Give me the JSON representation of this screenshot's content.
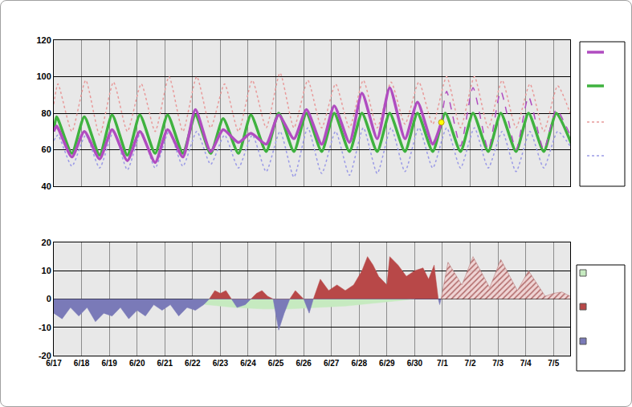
{
  "chart_data": [
    {
      "type": "line",
      "xlim": [
        0,
        18.6
      ],
      "xticks": [
        {
          "value": 0,
          "label": "6/17"
        },
        {
          "value": 1,
          "label": "6/18"
        },
        {
          "value": 2,
          "label": "6/19"
        },
        {
          "value": 3,
          "label": "6/20"
        },
        {
          "value": 4,
          "label": "6/21"
        },
        {
          "value": 5,
          "label": "6/22"
        },
        {
          "value": 6,
          "label": "6/23"
        },
        {
          "value": 7,
          "label": "6/24"
        },
        {
          "value": 8,
          "label": "6/25"
        },
        {
          "value": 9,
          "label": "6/26"
        },
        {
          "value": 10,
          "label": "6/27"
        },
        {
          "value": 11,
          "label": "6/28"
        },
        {
          "value": 12,
          "label": "6/29"
        },
        {
          "value": 13,
          "label": "6/30"
        },
        {
          "value": 14,
          "label": "7/1"
        },
        {
          "value": 15,
          "label": "7/2"
        },
        {
          "value": 16,
          "label": "7/3"
        },
        {
          "value": 17,
          "label": "7/4"
        },
        {
          "value": 18,
          "label": "7/5"
        }
      ],
      "ylim": [
        40,
        120
      ],
      "yticks": [
        40,
        60,
        80,
        100,
        120
      ],
      "grid": true,
      "tick_labels": "y",
      "series": [
        {
          "type": "line",
          "color": "#e89a9a",
          "line_style": "dotted",
          "x": [
            0,
            0.15,
            0.65,
            1.15,
            1.65,
            2.15,
            2.65,
            3.15,
            3.65,
            4.15,
            4.65,
            5.15,
            5.65,
            6.15,
            6.65,
            7.15,
            7.65,
            8.15,
            8.65,
            9.15,
            9.65,
            10.15,
            10.65,
            11.15,
            11.65,
            12.15,
            12.65,
            13.15,
            13.65,
            14.15,
            14.65,
            15.15,
            15.65,
            16.15,
            16.65,
            17.15,
            17.65,
            18.15,
            18.6
          ],
          "values": [
            85,
            96,
            70,
            98,
            68,
            97,
            70,
            96,
            70,
            100,
            70,
            100,
            72,
            96,
            70,
            98,
            72,
            102,
            72,
            98,
            72,
            96,
            72,
            98,
            72,
            97,
            74,
            97,
            74,
            100,
            72,
            100,
            72,
            98,
            72,
            96,
            70,
            95,
            80
          ]
        },
        {
          "type": "line",
          "color": "#9a9ae6",
          "line_style": "dotted",
          "x": [
            0,
            0.15,
            0.65,
            1.15,
            1.65,
            2.15,
            2.65,
            3.15,
            3.65,
            4.15,
            4.65,
            5.15,
            5.65,
            6.15,
            6.65,
            7.15,
            7.65,
            8.15,
            8.65,
            9.15,
            9.65,
            10.15,
            10.65,
            11.15,
            11.65,
            12.15,
            12.65,
            13.15,
            13.65,
            14.15,
            14.65,
            15.15,
            15.65,
            16.15,
            16.65,
            17.15,
            17.65,
            18.15,
            18.6
          ],
          "values": [
            65,
            68,
            51,
            68,
            50,
            70,
            49,
            70,
            50,
            70,
            51,
            70,
            52,
            68,
            50,
            68,
            48,
            70,
            45,
            72,
            47,
            70,
            46,
            72,
            47,
            72,
            48,
            72,
            50,
            72,
            50,
            72,
            50,
            70,
            48,
            70,
            50,
            70,
            62
          ]
        },
        {
          "type": "line",
          "color": "#3fb23f",
          "line_style": "solid",
          "x": [
            0,
            0.1,
            0.65,
            1.1,
            1.65,
            2.1,
            2.65,
            3.1,
            3.65,
            4.1,
            4.65,
            5.1,
            5.65,
            6.1,
            6.65,
            7.1,
            7.65,
            8.1,
            8.65,
            9.1,
            9.65,
            10.1,
            10.65,
            11.1,
            11.65,
            12.1,
            12.65,
            13.1,
            13.65,
            14.1,
            14.65,
            15.1,
            15.65,
            16.1,
            16.65,
            17.1,
            17.65,
            18.1,
            18.65
          ],
          "values": [
            70,
            78,
            58,
            78,
            57,
            79,
            57,
            79,
            58,
            79,
            58,
            79,
            58,
            77,
            58,
            79,
            59,
            80,
            59,
            80,
            59,
            80,
            59,
            80,
            59,
            80,
            59,
            80,
            59,
            80,
            59,
            80,
            59,
            80,
            59,
            80,
            59,
            80,
            63
          ]
        },
        {
          "type": "line",
          "color": "#b04cc0",
          "line_style": "solid",
          "x": [
            0,
            0.1,
            0.65,
            1.1,
            1.65,
            2.1,
            2.65,
            3.1,
            3.65,
            4.1,
            4.65,
            5.1,
            5.65,
            6.1,
            6.65,
            7.1,
            7.65,
            8.1,
            8.65,
            9.1,
            9.65,
            10.1,
            10.65,
            11.1,
            11.65,
            12.1,
            12.65,
            13.1,
            13.65,
            13.96
          ],
          "values": [
            70,
            73,
            56,
            70,
            55,
            71,
            54,
            70,
            53,
            71,
            56,
            82,
            59,
            71,
            64,
            69,
            63,
            79,
            66,
            82,
            63,
            84,
            64,
            91,
            66,
            94,
            66,
            86,
            63,
            75
          ]
        },
        {
          "type": "line",
          "color": "#b04cc0",
          "line_style": "dashed",
          "x": [
            13.96,
            14.15,
            14.65,
            15.1,
            15.65,
            16.1,
            16.65,
            17.1,
            17.65,
            18.1,
            18.6
          ],
          "values": [
            75,
            92,
            62,
            94,
            60,
            92,
            60,
            89,
            60,
            82,
            68
          ]
        },
        {
          "type": "scatter",
          "color": "#ffff00",
          "marker": "circle",
          "x": [
            13.96
          ],
          "values": [
            75
          ]
        }
      ]
    },
    {
      "type": "area",
      "xlim": [
        0,
        18.6
      ],
      "xticks": [
        {
          "value": 0,
          "label": "6/17"
        },
        {
          "value": 1,
          "label": "6/18"
        },
        {
          "value": 2,
          "label": "6/19"
        },
        {
          "value": 3,
          "label": "6/20"
        },
        {
          "value": 4,
          "label": "6/21"
        },
        {
          "value": 5,
          "label": "6/22"
        },
        {
          "value": 6,
          "label": "6/23"
        },
        {
          "value": 7,
          "label": "6/24"
        },
        {
          "value": 8,
          "label": "6/25"
        },
        {
          "value": 9,
          "label": "6/26"
        },
        {
          "value": 10,
          "label": "6/27"
        },
        {
          "value": 11,
          "label": "6/28"
        },
        {
          "value": 12,
          "label": "6/29"
        },
        {
          "value": 13,
          "label": "6/30"
        },
        {
          "value": 14,
          "label": "7/1"
        },
        {
          "value": 15,
          "label": "7/2"
        },
        {
          "value": 16,
          "label": "7/3"
        },
        {
          "value": 17,
          "label": "7/4"
        },
        {
          "value": 18,
          "label": "7/5"
        }
      ],
      "ylim": [
        -20,
        20
      ],
      "yticks": [
        -20,
        -10,
        0,
        10,
        20
      ],
      "grid": true,
      "series": [
        {
          "type": "area",
          "color": "#c6eac0",
          "x": [
            5.0,
            5.5,
            6.5,
            7.5,
            8.5,
            9.5,
            10.5,
            11.5,
            12.5,
            13.0
          ],
          "values": [
            -1,
            -2,
            -3,
            -3.5,
            -3.5,
            -3,
            -2.5,
            -1.5,
            -0.5,
            0
          ]
        },
        {
          "type": "area",
          "color": "#b84848",
          "x": [
            5.6,
            5.8,
            6.0,
            6.2,
            6.4,
            7.1,
            7.3,
            7.5,
            7.7,
            7.9,
            8.5,
            8.7,
            8.9,
            9.0,
            9.35,
            9.6,
            9.9,
            10.2,
            10.5,
            10.8,
            11.1,
            11.3,
            11.5,
            11.7,
            12.0,
            12.1,
            12.4,
            12.7,
            13.0,
            13.3,
            13.5,
            13.7,
            13.85
          ],
          "values": [
            0,
            3,
            2,
            3,
            0,
            0,
            2,
            3,
            1,
            0,
            0,
            3,
            1,
            0,
            0,
            7,
            3,
            5,
            3,
            5,
            10,
            15,
            12,
            8,
            5,
            15,
            12,
            8,
            10,
            11,
            7,
            12,
            0
          ]
        },
        {
          "type": "area",
          "color": "#7a7ab8",
          "x": [
            0,
            0.3,
            0.6,
            0.9,
            1.2,
            1.5,
            1.8,
            2.1,
            2.4,
            2.7,
            3.0,
            3.3,
            3.6,
            3.9,
            4.2,
            4.5,
            4.8,
            5.1,
            5.4,
            5.6,
            6.4,
            6.6,
            6.9,
            7.1,
            7.9,
            8.1,
            8.3,
            8.5,
            9.0,
            9.2,
            9.35,
            13.85,
            13.9,
            13.95
          ],
          "values": [
            -5,
            -7,
            -3,
            -6,
            -3,
            -8,
            -5,
            -6,
            -3,
            -7,
            -4,
            -6,
            -2,
            -4,
            -2,
            -6,
            -3,
            -4,
            -2,
            0,
            0,
            -3,
            -2,
            0,
            0,
            -11,
            -5,
            0,
            0,
            -5,
            0,
            0,
            -2,
            0
          ]
        },
        {
          "type": "hatched_area",
          "color": "#b06a6a",
          "x": [
            13.95,
            14.2,
            14.7,
            15.1,
            15.7,
            16.1,
            16.7,
            17.1,
            17.7,
            18.0,
            18.3,
            18.6
          ],
          "values": [
            0,
            13,
            5,
            15,
            4,
            14,
            3,
            10,
            1,
            2,
            2.5,
            1
          ]
        }
      ]
    }
  ]
}
